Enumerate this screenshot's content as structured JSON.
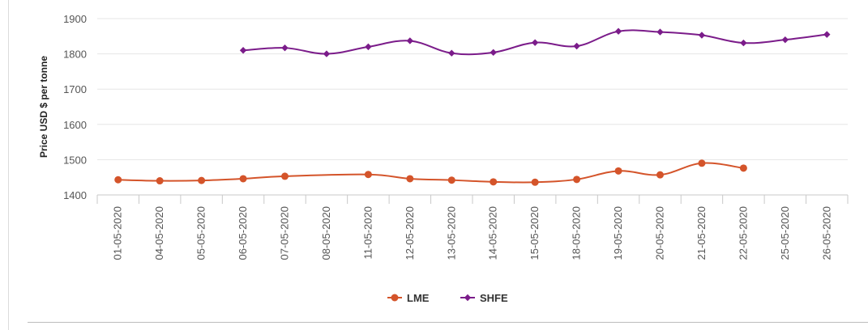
{
  "chart_data": {
    "type": "line",
    "title": "",
    "xlabel": "",
    "ylabel": "Price USD $ per tonne",
    "ylim": [
      1400,
      1900
    ],
    "yticks": [
      1400,
      1500,
      1600,
      1700,
      1800,
      1900
    ],
    "grid": true,
    "legend_position": "bottom-center",
    "categories": [
      "01-05-2020",
      "04-05-2020",
      "05-05-2020",
      "06-05-2020",
      "07-05-2020",
      "08-05-2020",
      "11-05-2020",
      "12-05-2020",
      "13-05-2020",
      "14-05-2020",
      "15-05-2020",
      "18-05-2020",
      "19-05-2020",
      "20-05-2020",
      "21-05-2020",
      "22-05-2020",
      "25-05-2020",
      "26-05-2020"
    ],
    "series": [
      {
        "name": "LME",
        "color": "#d4542a",
        "marker": "circle",
        "values": [
          1443,
          1440,
          1441,
          1446,
          1453,
          null,
          1458,
          1446,
          1442,
          1437,
          1436,
          1444,
          1468,
          1457,
          1490,
          1476,
          null,
          null
        ]
      },
      {
        "name": "SHFE",
        "color": "#7b1c8a",
        "marker": "diamond",
        "values": [
          null,
          null,
          null,
          1810,
          1817,
          1800,
          1820,
          1837,
          1802,
          1804,
          1832,
          1822,
          1864,
          1862,
          1853,
          1831,
          1840,
          1855
        ]
      }
    ]
  }
}
